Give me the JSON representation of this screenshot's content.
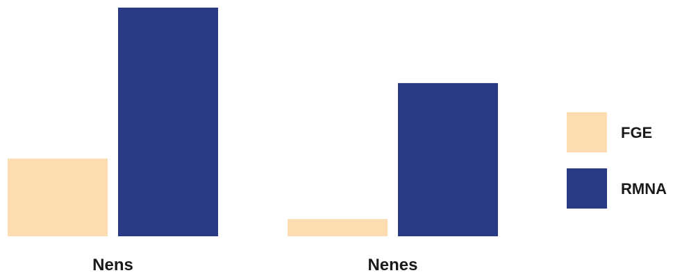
{
  "chart_data": {
    "type": "bar",
    "categories": [
      "Nens",
      "Nenes"
    ],
    "series": [
      {
        "name": "FGE",
        "values": [
          34,
          7.5
        ],
        "color": "#fcdcb0"
      },
      {
        "name": "RMNA",
        "values": [
          100,
          67
        ],
        "color": "#2b3a85"
      }
    ],
    "ylim": [
      0,
      100
    ],
    "grid": false,
    "legend_position": "right",
    "title": "",
    "xlabel": "",
    "ylabel": ""
  }
}
